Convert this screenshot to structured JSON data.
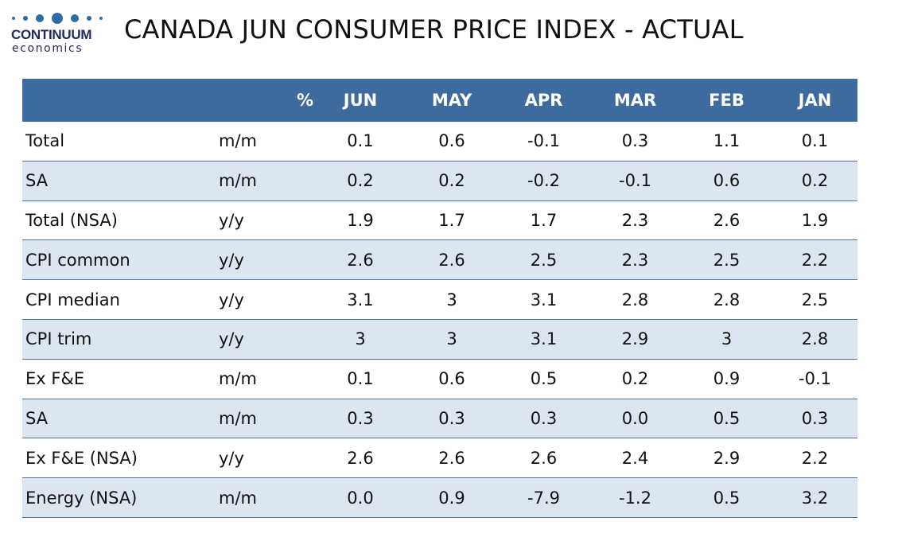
{
  "logo": {
    "name": "CONTINUUM",
    "sub": "economics",
    "accent": "#2d6ca5"
  },
  "title": "CANADA JUN CONSUMER PRICE INDEX - ACTUAL",
  "colors": {
    "header_bg": "#3e6b9e",
    "alt_row_bg": "#dce6f1",
    "rule": "#4a72a2"
  },
  "chart_data": {
    "type": "table",
    "title": "CANADA JUN CONSUMER PRICE INDEX - ACTUAL",
    "columns": [
      "",
      "%",
      "JUN",
      "MAY",
      "APR",
      "MAR",
      "FEB",
      "JAN"
    ],
    "rows": [
      {
        "label": "Total",
        "unit": "m/m",
        "values": [
          "0.1",
          "0.6",
          "-0.1",
          "0.3",
          "1.1",
          "0.1"
        ]
      },
      {
        "label": "SA",
        "unit": "m/m",
        "values": [
          "0.2",
          "0.2",
          "-0.2",
          "-0.1",
          "0.6",
          "0.2"
        ]
      },
      {
        "label": "Total (NSA)",
        "unit": "y/y",
        "values": [
          "1.9",
          "1.7",
          "1.7",
          "2.3",
          "2.6",
          "1.9"
        ]
      },
      {
        "label": "CPI common",
        "unit": "y/y",
        "values": [
          "2.6",
          "2.6",
          "2.5",
          "2.3",
          "2.5",
          "2.2"
        ]
      },
      {
        "label": "CPI median",
        "unit": "y/y",
        "values": [
          "3.1",
          "3",
          "3.1",
          "2.8",
          "2.8",
          "2.5"
        ]
      },
      {
        "label": "CPI trim",
        "unit": "y/y",
        "values": [
          "3",
          "3",
          "3.1",
          "2.9",
          "3",
          "2.8"
        ]
      },
      {
        "label": "Ex F&E",
        "unit": "m/m",
        "values": [
          "0.1",
          "0.6",
          "0.5",
          "0.2",
          "0.9",
          "-0.1"
        ]
      },
      {
        "label": "SA",
        "unit": "m/m",
        "values": [
          "0.3",
          "0.3",
          "0.3",
          "0.0",
          "0.5",
          "0.3"
        ]
      },
      {
        "label": "Ex F&E (NSA)",
        "unit": "y/y",
        "values": [
          "2.6",
          "2.6",
          "2.6",
          "2.4",
          "2.9",
          "2.2"
        ]
      },
      {
        "label": "Energy (NSA)",
        "unit": "m/m",
        "values": [
          "0.0",
          "0.9",
          "-7.9",
          "-1.2",
          "0.5",
          "3.2"
        ]
      }
    ]
  }
}
